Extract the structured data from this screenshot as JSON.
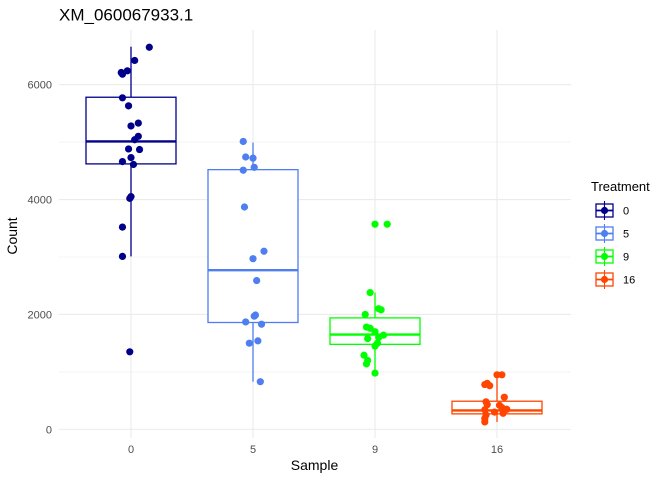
{
  "chart_data": {
    "type": "box",
    "title": "XM_060067933.1",
    "xlabel": "Sample",
    "ylabel": "Count",
    "categories": [
      "0",
      "5",
      "9",
      "16"
    ],
    "yticks": [
      0,
      2000,
      4000,
      6000
    ],
    "ylim": [
      -150,
      6950
    ],
    "grid": true,
    "legend": {
      "title": "Treatment",
      "position": "right",
      "entries": [
        "0",
        "5",
        "9",
        "16"
      ]
    },
    "colors": {
      "0": "#00008b",
      "5": "#4f7ef0",
      "9": "#00ff00",
      "16": "#ff4500"
    },
    "boxes": [
      {
        "category": "0",
        "whisker_low": 3010,
        "q1": 4620,
        "median": 5010,
        "q3": 5780,
        "whisker_high": 6660
      },
      {
        "category": "5",
        "whisker_low": 830,
        "q1": 1860,
        "median": 2770,
        "q3": 4520,
        "whisker_high": 4990
      },
      {
        "category": "9",
        "whisker_low": 980,
        "q1": 1480,
        "median": 1650,
        "q3": 1940,
        "whisker_high": 2380
      },
      {
        "category": "16",
        "whisker_low": 130,
        "q1": 270,
        "median": 330,
        "q3": 490,
        "whisker_high": 950
      }
    ],
    "series": [
      {
        "name": "0",
        "points": [
          {
            "x": 0.15,
            "y": 6650
          },
          {
            "x": 0.03,
            "y": 6420
          },
          {
            "x": -0.03,
            "y": 6240
          },
          {
            "x": -0.08,
            "y": 6210
          },
          {
            "x": -0.07,
            "y": 6180
          },
          {
            "x": -0.07,
            "y": 5770
          },
          {
            "x": -0.02,
            "y": 5630
          },
          {
            "x": 0.0,
            "y": 5280
          },
          {
            "x": 0.06,
            "y": 5330
          },
          {
            "x": 0.06,
            "y": 5100
          },
          {
            "x": 0.03,
            "y": 5040
          },
          {
            "x": -0.02,
            "y": 4880
          },
          {
            "x": 0.07,
            "y": 4870
          },
          {
            "x": 0.0,
            "y": 4730
          },
          {
            "x": -0.07,
            "y": 4660
          },
          {
            "x": 0.02,
            "y": 4610
          },
          {
            "x": 0.0,
            "y": 4050
          },
          {
            "x": -0.01,
            "y": 4020
          },
          {
            "x": -0.07,
            "y": 3520
          },
          {
            "x": -0.07,
            "y": 3010
          },
          {
            "x": -0.01,
            "y": 1350
          }
        ]
      },
      {
        "name": "5",
        "points": [
          {
            "x": -0.08,
            "y": 5010
          },
          {
            "x": -0.06,
            "y": 4740
          },
          {
            "x": 0.0,
            "y": 4720
          },
          {
            "x": 0.01,
            "y": 4560
          },
          {
            "x": -0.08,
            "y": 4510
          },
          {
            "x": -0.07,
            "y": 3870
          },
          {
            "x": 0.09,
            "y": 3100
          },
          {
            "x": 0.0,
            "y": 2970
          },
          {
            "x": 0.03,
            "y": 2590
          },
          {
            "x": 0.02,
            "y": 1990
          },
          {
            "x": 0.01,
            "y": 1970
          },
          {
            "x": -0.06,
            "y": 1870
          },
          {
            "x": 0.07,
            "y": 1830
          },
          {
            "x": 0.04,
            "y": 1540
          },
          {
            "x": -0.03,
            "y": 1500
          },
          {
            "x": 0.06,
            "y": 830
          }
        ]
      },
      {
        "name": "9",
        "points": [
          {
            "x": 0.0,
            "y": 3570
          },
          {
            "x": 0.1,
            "y": 3570
          },
          {
            "x": -0.04,
            "y": 2380
          },
          {
            "x": 0.03,
            "y": 2100
          },
          {
            "x": 0.05,
            "y": 2080
          },
          {
            "x": -0.08,
            "y": 2000
          },
          {
            "x": -0.07,
            "y": 1780
          },
          {
            "x": -0.04,
            "y": 1760
          },
          {
            "x": 0.0,
            "y": 1700
          },
          {
            "x": 0.07,
            "y": 1640
          },
          {
            "x": 0.03,
            "y": 1600
          },
          {
            "x": -0.06,
            "y": 1580
          },
          {
            "x": 0.02,
            "y": 1500
          },
          {
            "x": 0.0,
            "y": 1450
          },
          {
            "x": -0.09,
            "y": 1290
          },
          {
            "x": -0.06,
            "y": 1200
          },
          {
            "x": -0.07,
            "y": 1140
          },
          {
            "x": 0.0,
            "y": 980
          }
        ]
      },
      {
        "name": "16",
        "points": [
          {
            "x": 0.0,
            "y": 950
          },
          {
            "x": 0.04,
            "y": 950
          },
          {
            "x": -0.1,
            "y": 780
          },
          {
            "x": -0.08,
            "y": 800
          },
          {
            "x": -0.06,
            "y": 760
          },
          {
            "x": 0.06,
            "y": 560
          },
          {
            "x": -0.09,
            "y": 480
          },
          {
            "x": -0.08,
            "y": 430
          },
          {
            "x": 0.02,
            "y": 420
          },
          {
            "x": 0.04,
            "y": 380
          },
          {
            "x": 0.08,
            "y": 350
          },
          {
            "x": -0.1,
            "y": 340
          },
          {
            "x": -0.02,
            "y": 300
          },
          {
            "x": 0.05,
            "y": 280
          },
          {
            "x": -0.09,
            "y": 250
          },
          {
            "x": -0.1,
            "y": 190
          },
          {
            "x": -0.1,
            "y": 130
          }
        ]
      }
    ]
  }
}
